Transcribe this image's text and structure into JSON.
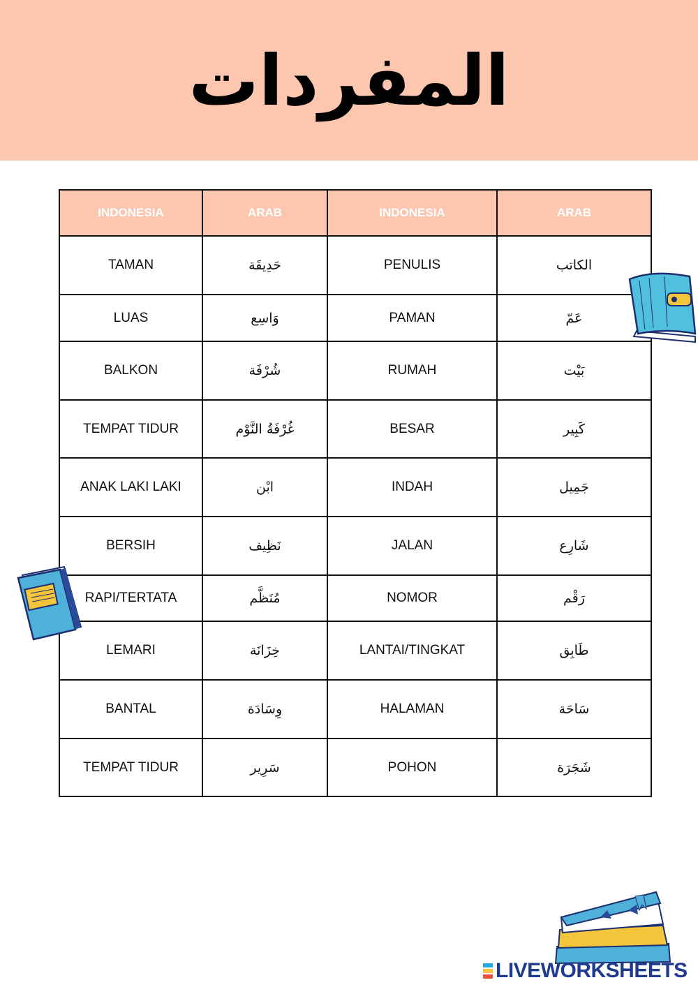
{
  "title": "المفردات",
  "table": {
    "headers": [
      "INDONESIA",
      "ARAB",
      "INDONESIA",
      "ARAB"
    ],
    "rows": [
      [
        "TAMAN",
        "حَدِيقَة",
        "PENULIS",
        "الكاتب"
      ],
      [
        "LUAS",
        "وَاسِع",
        "PAMAN",
        "عَمّ"
      ],
      [
        "BALKON",
        "شُرْفَة",
        "RUMAH",
        "بَيْت"
      ],
      [
        "TEMPAT TIDUR",
        "غُرْفَةُ النَّوْم",
        "BESAR",
        "كَبِير"
      ],
      [
        "ANAK LAKI LAKI",
        "ابْن",
        "INDAH",
        "جَمِيل"
      ],
      [
        "BERSIH",
        "نَظِيف",
        "JALAN",
        "شَارِع"
      ],
      [
        "RAPI/TERTATA",
        "مُنَظَّم",
        "NOMOR",
        "رَقْم"
      ],
      [
        "LEMARI",
        "خِزَانَة",
        "LANTAI/TINGKAT",
        "طَابِق"
      ],
      [
        "BANTAL",
        "وِسَادَة",
        "HALAMAN",
        "سَاحَة"
      ],
      [
        "TEMPAT TIDUR",
        "سَرِير",
        "POHON",
        "شَجَرَة"
      ]
    ]
  },
  "logo": "LIVEWORKSHEETS",
  "colors": {
    "banner": "#fcc6af",
    "header_text": "#ffffff",
    "border": "#111111",
    "logo": "#1f3b8f"
  },
  "icons": [
    "blue-notebook-icon",
    "blue-book-icon",
    "book-stack-icon"
  ]
}
